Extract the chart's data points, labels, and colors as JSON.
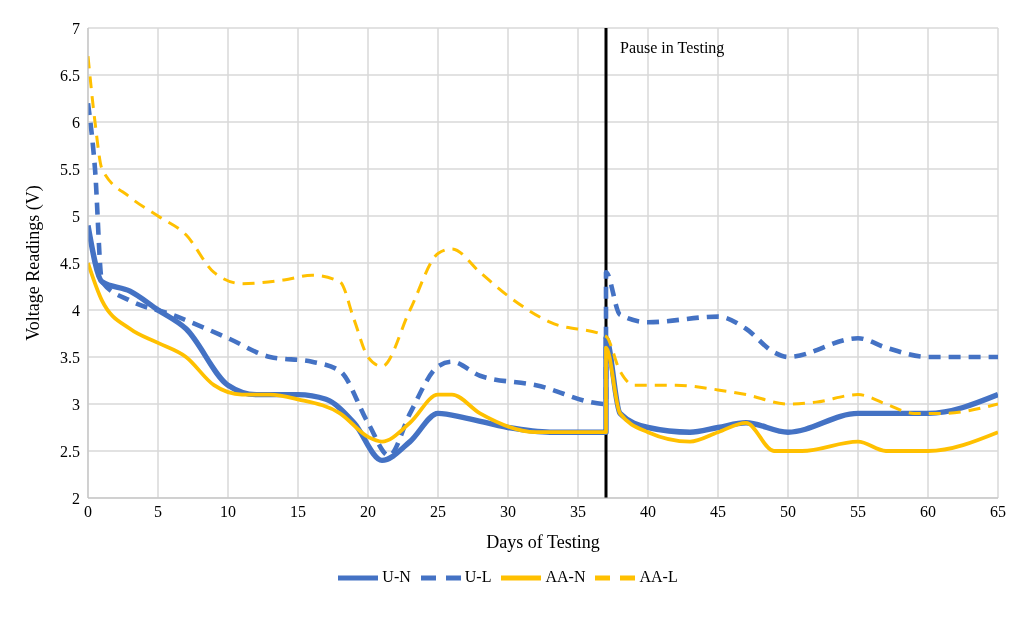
{
  "chart_data": {
    "type": "line",
    "xlabel": "Days of Testing",
    "ylabel": "Voltage Readings (V)",
    "xlim": [
      0,
      65
    ],
    "xticks": [
      0,
      5,
      10,
      15,
      20,
      25,
      30,
      35,
      40,
      45,
      50,
      55,
      60,
      65
    ],
    "ylim": [
      2,
      7
    ],
    "yticks": [
      2,
      2.5,
      3,
      3.5,
      4,
      4.5,
      5,
      5.5,
      6,
      6.5,
      7
    ],
    "grid": true,
    "legend": "bottom",
    "marker": "none",
    "ref_lines": [
      {
        "axis": "x",
        "value": 37,
        "label": "Pause in Testing",
        "color": "#000000"
      }
    ],
    "series": [
      {
        "name": "U-N",
        "color": "#4472c4",
        "line_style": "solid",
        "x": [
          0,
          1,
          3,
          5,
          7,
          10,
          12,
          15,
          17,
          19,
          21,
          23,
          25,
          27,
          30,
          33,
          37,
          37,
          38,
          40,
          43,
          45,
          47,
          50,
          55,
          57,
          60,
          65
        ],
        "values": [
          4.9,
          4.3,
          4.2,
          4.0,
          3.8,
          3.2,
          3.1,
          3.1,
          3.05,
          2.8,
          2.4,
          2.6,
          2.9,
          2.85,
          2.75,
          2.7,
          2.7,
          3.7,
          2.9,
          2.75,
          2.7,
          2.75,
          2.8,
          2.7,
          2.9,
          2.9,
          2.9,
          3.1
        ]
      },
      {
        "name": "U-L",
        "color": "#4472c4",
        "line_style": "dashed",
        "x": [
          0,
          0.5,
          1,
          3,
          6,
          10,
          13,
          16,
          18,
          20,
          21.5,
          23,
          25,
          26,
          28,
          32,
          37,
          37,
          38,
          40,
          45,
          47,
          49,
          50,
          55,
          57,
          60,
          65
        ],
        "values": [
          6.2,
          5.5,
          4.3,
          4.1,
          3.95,
          3.7,
          3.5,
          3.45,
          3.35,
          2.8,
          2.45,
          2.9,
          3.4,
          3.45,
          3.3,
          3.2,
          3.0,
          4.4,
          3.95,
          3.87,
          3.93,
          3.8,
          3.55,
          3.5,
          3.7,
          3.6,
          3.5,
          3.5
        ]
      },
      {
        "name": "AA-N",
        "color": "#ffc000",
        "line_style": "solid",
        "x": [
          0,
          1,
          3,
          5,
          7,
          9,
          11,
          13,
          15,
          18,
          20,
          21,
          23,
          25,
          26,
          28,
          32,
          37,
          37,
          38,
          40,
          43,
          45,
          47,
          49,
          51,
          55,
          57,
          60,
          65
        ],
        "values": [
          4.5,
          4.1,
          3.8,
          3.65,
          3.5,
          3.2,
          3.1,
          3.1,
          3.05,
          2.9,
          2.65,
          2.6,
          2.8,
          3.1,
          3.1,
          2.9,
          2.7,
          2.7,
          3.6,
          2.9,
          2.7,
          2.6,
          2.7,
          2.8,
          2.5,
          2.5,
          2.6,
          2.5,
          2.5,
          2.7
        ]
      },
      {
        "name": "AA-L",
        "color": "#ffc000",
        "line_style": "dashed",
        "x": [
          0,
          0.5,
          1,
          3,
          5,
          7,
          9,
          11,
          14,
          16,
          18,
          19,
          20,
          21,
          23,
          25,
          26,
          28,
          30,
          33,
          37,
          38,
          39,
          42,
          45,
          47,
          50,
          52,
          55,
          57,
          59,
          61,
          65
        ],
        "values": [
          6.7,
          6.0,
          5.5,
          5.2,
          5.0,
          4.8,
          4.4,
          4.28,
          4.32,
          4.37,
          4.3,
          3.9,
          3.5,
          3.4,
          4.0,
          4.6,
          4.65,
          4.4,
          4.15,
          3.87,
          3.72,
          3.35,
          3.2,
          3.2,
          3.15,
          3.1,
          3.0,
          3.02,
          3.1,
          3.0,
          2.9,
          2.9,
          3.0
        ]
      }
    ]
  }
}
